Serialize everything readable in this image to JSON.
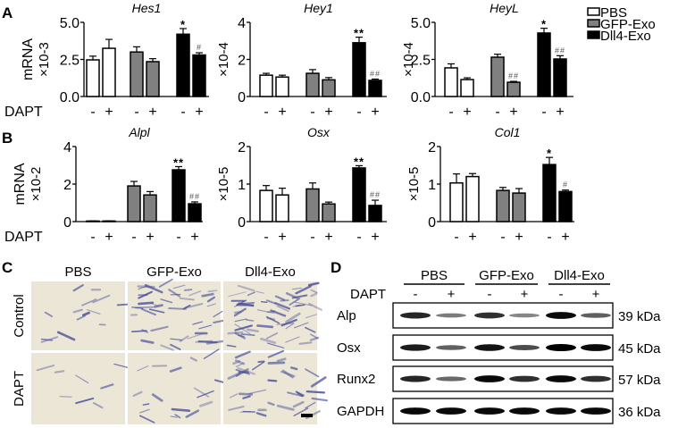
{
  "panels": {
    "A": "A",
    "B": "B",
    "C": "C",
    "D": "D"
  },
  "treatment_label": "DAPT",
  "legend": [
    {
      "name": "PBS",
      "color": "#ffffff"
    },
    {
      "name": "GFP-Exo",
      "color": "#808080"
    },
    {
      "name": "Dll4-Exo",
      "color": "#000000"
    }
  ],
  "chart_data": [
    {
      "type": "bar",
      "panel": "A",
      "title": "Hes1",
      "ylabel": "mRNA",
      "multiplier": "×10-3",
      "ylim": [
        0,
        5
      ],
      "yticks": [
        "0.0",
        "2.5",
        "5.0"
      ],
      "ytick_values": [
        0,
        2.5,
        5
      ],
      "categories": [
        "-",
        "+",
        "-",
        "+",
        "-",
        "+"
      ],
      "groups": [
        "PBS",
        "PBS",
        "GFP-Exo",
        "GFP-Exo",
        "Dll4-Exo",
        "Dll4-Exo"
      ],
      "values": [
        2.47,
        3.25,
        3.0,
        2.35,
        4.2,
        2.8
      ],
      "errors": [
        0.25,
        0.6,
        0.35,
        0.2,
        0.38,
        0.15
      ],
      "annotations": [
        "",
        "",
        "",
        "",
        "*",
        "#"
      ]
    },
    {
      "type": "bar",
      "panel": "A",
      "title": "Hey1",
      "ylabel": "",
      "multiplier": "×10-4",
      "ylim": [
        0,
        4
      ],
      "yticks": [
        "0",
        "2",
        "4"
      ],
      "ytick_values": [
        0,
        2,
        4
      ],
      "categories": [
        "-",
        "+",
        "-",
        "+",
        "-",
        "+"
      ],
      "groups": [
        "PBS",
        "PBS",
        "GFP-Exo",
        "GFP-Exo",
        "Dll4-Exo",
        "Dll4-Exo"
      ],
      "values": [
        1.15,
        1.05,
        1.25,
        0.9,
        2.9,
        0.87
      ],
      "errors": [
        0.1,
        0.1,
        0.2,
        0.12,
        0.3,
        0.07
      ],
      "annotations": [
        "",
        "",
        "",
        "",
        "**",
        "##"
      ]
    },
    {
      "type": "bar",
      "panel": "A",
      "title": "HeyL",
      "ylabel": "",
      "multiplier": "×10-4",
      "ylim": [
        0,
        5
      ],
      "yticks": [
        "0.0",
        "2.5",
        "5.0"
      ],
      "ytick_values": [
        0,
        2.5,
        5
      ],
      "categories": [
        "-",
        "+",
        "-",
        "+",
        "-",
        "+"
      ],
      "groups": [
        "PBS",
        "PBS",
        "GFP-Exo",
        "GFP-Exo",
        "Dll4-Exo",
        "Dll4-Exo"
      ],
      "values": [
        1.93,
        1.14,
        2.65,
        0.96,
        4.28,
        2.53
      ],
      "errors": [
        0.27,
        0.12,
        0.2,
        0.06,
        0.32,
        0.22
      ],
      "annotations": [
        "",
        "",
        "",
        "##",
        "*",
        "##"
      ]
    },
    {
      "type": "bar",
      "panel": "B",
      "title": "Alpl",
      "ylabel": "mRNA",
      "multiplier": "×10-2",
      "ylim": [
        0,
        4
      ],
      "yticks": [
        "0",
        "2",
        "4"
      ],
      "ytick_values": [
        0,
        2,
        4
      ],
      "categories": [
        "-",
        "+",
        "-",
        "+",
        "-",
        "+"
      ],
      "groups": [
        "PBS",
        "PBS",
        "GFP-Exo",
        "GFP-Exo",
        "Dll4-Exo",
        "Dll4-Exo"
      ],
      "values": [
        0.03,
        0.03,
        1.9,
        1.42,
        2.76,
        0.95
      ],
      "errors": [
        0.01,
        0.01,
        0.24,
        0.18,
        0.17,
        0.1
      ],
      "annotations": [
        "",
        "",
        "",
        "",
        "**",
        "##"
      ]
    },
    {
      "type": "bar",
      "panel": "B",
      "title": "Osx",
      "ylabel": "",
      "multiplier": "×10-5",
      "ylim": [
        0,
        2
      ],
      "yticks": [
        "0",
        "1",
        "2"
      ],
      "ytick_values": [
        0,
        1,
        2
      ],
      "categories": [
        "-",
        "+",
        "-",
        "+",
        "-",
        "+"
      ],
      "groups": [
        "PBS",
        "PBS",
        "GFP-Exo",
        "GFP-Exo",
        "Dll4-Exo",
        "Dll4-Exo"
      ],
      "values": [
        0.83,
        0.71,
        0.87,
        0.47,
        1.43,
        0.43
      ],
      "errors": [
        0.13,
        0.18,
        0.16,
        0.05,
        0.06,
        0.14
      ],
      "annotations": [
        "",
        "",
        "",
        "",
        "**",
        "##"
      ]
    },
    {
      "type": "bar",
      "panel": "B",
      "title": "Col1",
      "ylabel": "",
      "multiplier": "×10-5",
      "ylim": [
        0,
        2
      ],
      "yticks": [
        "0",
        "1",
        "2"
      ],
      "ytick_values": [
        0,
        1,
        2
      ],
      "categories": [
        "-",
        "+",
        "-",
        "+",
        "-",
        "+"
      ],
      "groups": [
        "PBS",
        "PBS",
        "GFP-Exo",
        "GFP-Exo",
        "Dll4-Exo",
        "Dll4-Exo"
      ],
      "values": [
        1.03,
        1.2,
        0.83,
        0.76,
        1.52,
        0.8
      ],
      "errors": [
        0.24,
        0.08,
        0.08,
        0.12,
        0.19,
        0.04
      ],
      "annotations": [
        "",
        "",
        "",
        "",
        "*",
        "#"
      ]
    }
  ],
  "staining": {
    "columns": [
      "PBS",
      "GFP-Exo",
      "Dll4-Exo"
    ],
    "rows": [
      "Control",
      "DAPT"
    ],
    "stain_color": "#4a4f9a",
    "background_color": "#ece6d6"
  },
  "western": {
    "groups": [
      "PBS",
      "GFP-Exo",
      "Dll4-Exo"
    ],
    "dapt": [
      "-",
      "+",
      "-",
      "+",
      "-",
      "+"
    ],
    "rows": [
      {
        "protein": "Alp",
        "size": "39 kDa",
        "intensity": [
          0.8,
          0.35,
          0.75,
          0.3,
          0.95,
          0.5
        ]
      },
      {
        "protein": "Osx",
        "size": "45 kDa",
        "intensity": [
          0.85,
          0.5,
          0.9,
          0.6,
          1.0,
          0.95
        ]
      },
      {
        "protein": "Runx2",
        "size": "57 kDa",
        "intensity": [
          0.8,
          0.45,
          0.95,
          0.75,
          0.95,
          0.75
        ]
      },
      {
        "protein": "GAPDH",
        "size": "36 kDa",
        "intensity": [
          0.95,
          0.95,
          0.95,
          0.95,
          0.95,
          0.95
        ]
      }
    ]
  }
}
